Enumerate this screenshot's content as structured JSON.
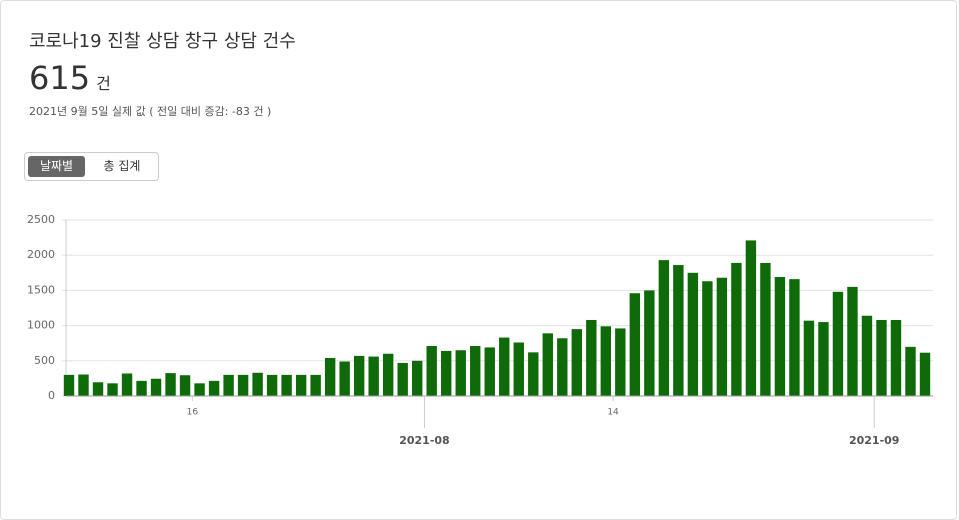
{
  "header": {
    "title": "코로나19 진찰 상담 창구 상담 건수",
    "value": "615",
    "unit": "건",
    "subtitle": "2021년 9월 5일 실제 값 ( 전일 대비 증감: -83 건 )"
  },
  "toggle": {
    "options": [
      "날짜별",
      "총 집계"
    ]
  },
  "chart_data": {
    "type": "bar",
    "color": "#0f6b0a",
    "grid": true,
    "values": [
      300,
      305,
      195,
      180,
      320,
      215,
      245,
      325,
      295,
      180,
      215,
      300,
      300,
      330,
      300,
      300,
      300,
      300,
      540,
      490,
      570,
      560,
      600,
      470,
      500,
      710,
      640,
      650,
      710,
      690,
      830,
      760,
      620,
      890,
      820,
      950,
      1080,
      990,
      960,
      1460,
      1500,
      1930,
      1860,
      1750,
      1630,
      1680,
      1890,
      2210,
      1890,
      1690,
      1660,
      1070,
      1050,
      1480,
      1550,
      1140,
      1080,
      1080,
      698,
      615
    ],
    "ylim": [
      0,
      2500
    ],
    "yticks": [
      0,
      500,
      1000,
      1500,
      2000,
      2500
    ],
    "xticks": [
      {
        "value": 8.5,
        "label": "16"
      },
      {
        "value": 37.5,
        "label": "14"
      }
    ],
    "xticks_major": [
      {
        "value": 24.5,
        "label": "2021-08"
      },
      {
        "value": 55.5,
        "label": "2021-09"
      }
    ]
  }
}
